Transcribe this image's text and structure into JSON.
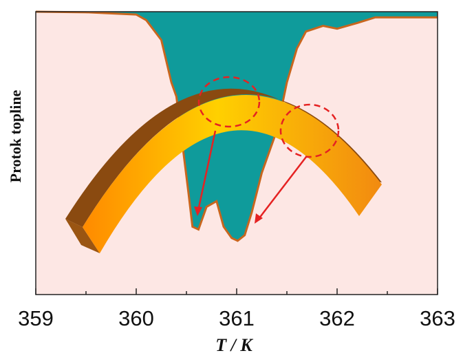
{
  "chart_data": {
    "type": "area",
    "ylabel": "Protok topline",
    "xlabel": "T / K",
    "x": [
      359,
      359.5,
      360.0,
      360.1,
      360.25,
      360.35,
      360.4,
      360.45,
      360.52,
      360.56,
      360.62,
      360.7,
      360.8,
      360.87,
      360.95,
      361.01,
      361.08,
      361.15,
      361.25,
      361.4,
      361.5,
      361.6,
      361.69,
      361.86,
      362.0,
      362.2,
      362.38,
      363
    ],
    "values": [
      1.0,
      0.998,
      0.99,
      0.97,
      0.9,
      0.75,
      0.7,
      0.56,
      0.36,
      0.24,
      0.23,
      0.31,
      0.33,
      0.24,
      0.2,
      0.19,
      0.21,
      0.29,
      0.43,
      0.58,
      0.75,
      0.87,
      0.93,
      0.95,
      0.94,
      0.96,
      0.98,
      0.98
    ],
    "color": "#0f9b9b",
    "line_color": "#c8661e",
    "background": "#fde7e4",
    "xlim": [
      359,
      363
    ],
    "xticks": [
      359,
      360,
      361,
      362,
      363
    ],
    "xminorticks": [
      359.5,
      360.5,
      361.5,
      362.5
    ],
    "ylim": [
      0,
      1
    ]
  }
}
